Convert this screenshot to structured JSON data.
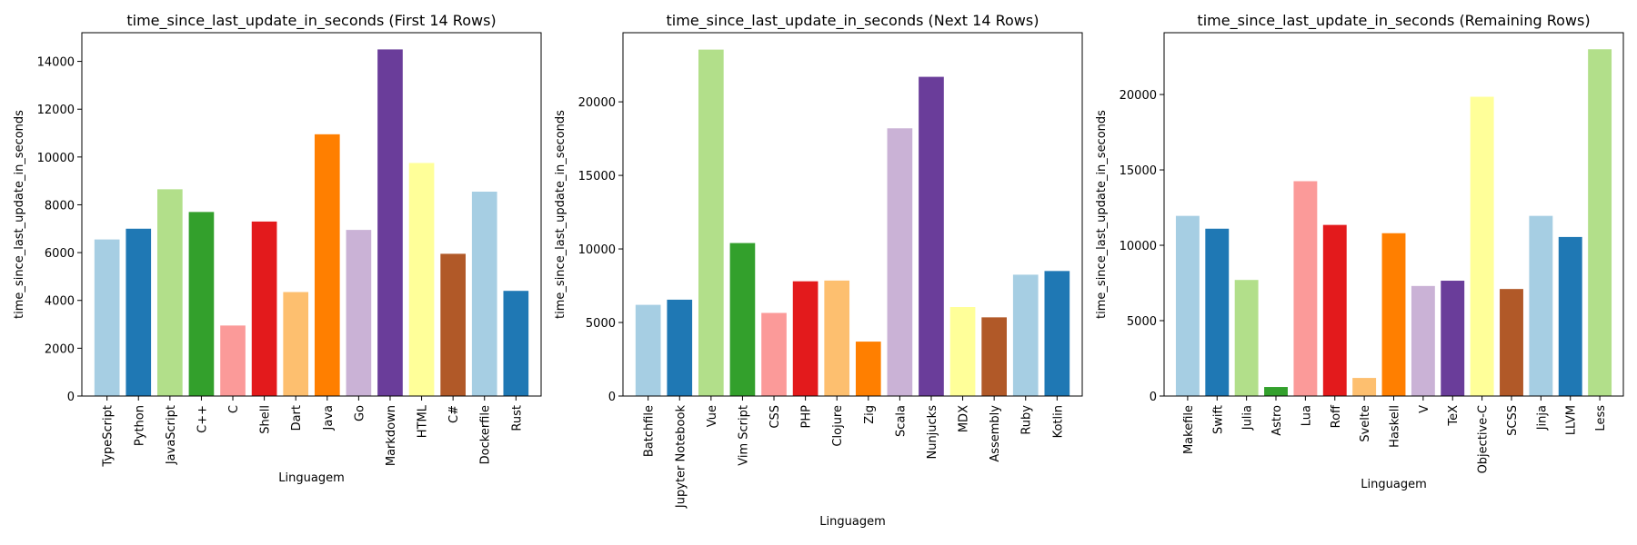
{
  "colors": [
    "#a6cee3",
    "#1f78b4",
    "#b2df8a",
    "#33a02c",
    "#fb9a99",
    "#e31a1c",
    "#fdbf6f",
    "#ff7f00",
    "#cab2d6",
    "#6a3d9a",
    "#ffff99",
    "#b15928"
  ],
  "chart_data": [
    {
      "type": "bar",
      "title": "time_since_last_update_in_seconds (First 14 Rows)",
      "xlabel": "Linguagem",
      "ylabel": "time_since_last_update_in_seconds",
      "categories": [
        "TypeScript",
        "Python",
        "JavaScript",
        "C++",
        "C",
        "Shell",
        "Dart",
        "Java",
        "Go",
        "Markdown",
        "HTML",
        "C#",
        "Dockerfile",
        "Rust"
      ],
      "values": [
        6550,
        7000,
        8650,
        7700,
        2950,
        7300,
        4350,
        10950,
        6950,
        14500,
        9750,
        5950,
        8550,
        4400
      ],
      "ylim": [
        0,
        15200
      ],
      "yticks": [
        0,
        2000,
        4000,
        6000,
        8000,
        10000,
        12000,
        14000
      ],
      "grid": false,
      "legend": "none"
    },
    {
      "type": "bar",
      "title": "time_since_last_update_in_seconds (Next 14 Rows)",
      "xlabel": "Linguagem",
      "ylabel": "time_since_last_update_in_seconds",
      "categories": [
        "Batchfile",
        "Jupyter Notebook",
        "Vue",
        "Vim Script",
        "CSS",
        "PHP",
        "Clojure",
        "Zig",
        "Scala",
        "Nunjucks",
        "MDX",
        "Assembly",
        "Ruby",
        "Kotlin"
      ],
      "values": [
        6200,
        6550,
        23550,
        10400,
        5650,
        7800,
        7850,
        3700,
        18200,
        21700,
        6050,
        5350,
        8250,
        8500
      ],
      "ylim": [
        0,
        24700
      ],
      "yticks": [
        0,
        5000,
        10000,
        15000,
        20000
      ],
      "grid": false,
      "legend": "none"
    },
    {
      "type": "bar",
      "title": "time_since_last_update_in_seconds (Remaining Rows)",
      "xlabel": "Linguagem",
      "ylabel": "time_since_last_update_in_seconds",
      "categories": [
        "Makefile",
        "Swift",
        "Julia",
        "Astro",
        "Lua",
        "Roff",
        "Svelte",
        "Haskell",
        "V",
        "TeX",
        "Objective-C",
        "SCSS",
        "Jinja",
        "LLVM",
        "Less"
      ],
      "values": [
        11950,
        11100,
        7700,
        600,
        14250,
        11350,
        1200,
        10800,
        7300,
        7650,
        19850,
        7100,
        11950,
        10550,
        23000
      ],
      "ylim": [
        0,
        24100
      ],
      "yticks": [
        0,
        5000,
        10000,
        15000,
        20000
      ],
      "grid": false,
      "legend": "none"
    }
  ]
}
